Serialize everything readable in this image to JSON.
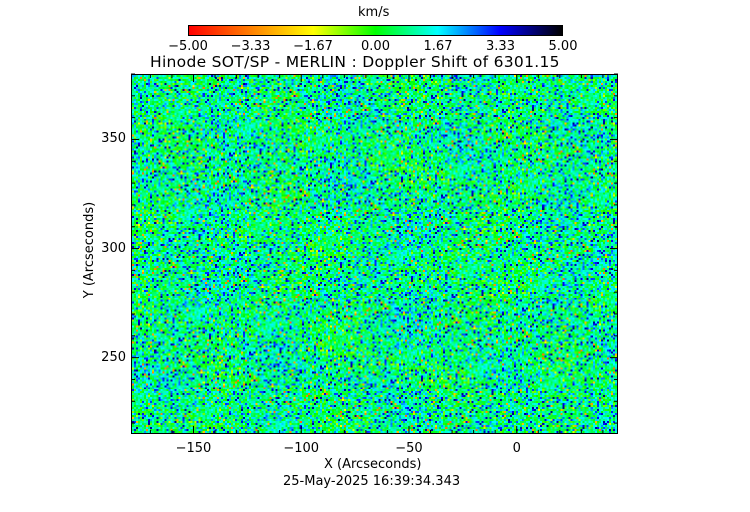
{
  "chart_data": {
    "type": "heatmap",
    "title": "Hinode SOT/SP - MERLIN : Doppler Shift of 6301.15",
    "xlabel": "X (Arcseconds)",
    "ylabel": "Y (Arcseconds)",
    "xlim": [
      -179,
      47
    ],
    "ylim": [
      215,
      380
    ],
    "xticks": [
      -150,
      -100,
      -50,
      0
    ],
    "yticks": [
      250,
      300,
      350
    ],
    "xtick_labels": [
      "−150",
      "−100",
      "−50",
      "0"
    ],
    "ytick_labels": [
      "250",
      "300",
      "350"
    ],
    "colorbar": {
      "label": "km/s",
      "range": [
        -5.0,
        5.0
      ],
      "tick_labels": [
        "−5.00",
        "−3.33",
        "−1.67",
        "0.00",
        "1.67",
        "3.33",
        "5.00"
      ],
      "colormap": [
        "#ff0000",
        "#ff8000",
        "#ffff00",
        "#00ff00",
        "#00ffff",
        "#0000ff",
        "#000000"
      ],
      "placement": "top"
    },
    "timestamp": "25-May-2025 16:39:34.343",
    "grid": false
  }
}
